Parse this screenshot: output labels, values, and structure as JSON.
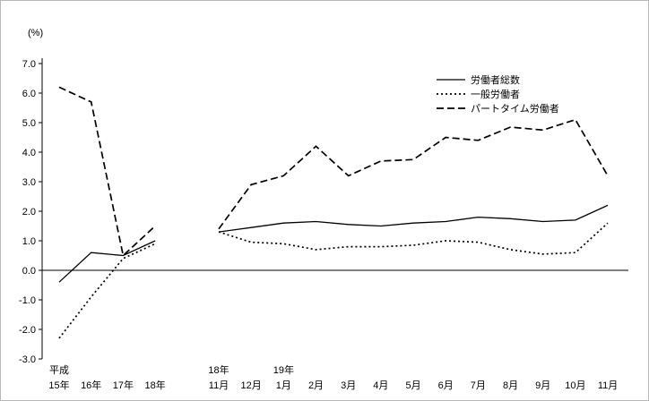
{
  "chart_data": {
    "type": "line",
    "title": "",
    "unit_label": "(%)",
    "ylabel": "(%)",
    "xlabel": "",
    "ylim": [
      -3.0,
      7.0
    ],
    "grid": false,
    "legend_position": "upper-center-right",
    "line_color": "#000000",
    "yticks": [
      "7.0",
      "6.0",
      "5.0",
      "4.0",
      "3.0",
      "2.0",
      "1.0",
      "0.0",
      "-1.0",
      "-2.0",
      "-3.0"
    ],
    "x_axis": {
      "annual": {
        "era_label": "平成",
        "labels": [
          "15年",
          "16年",
          "17年",
          "18年"
        ]
      },
      "monthly": {
        "year_labels": [
          {
            "index": 0,
            "label": "18年"
          },
          {
            "index": 2,
            "label": "19年"
          }
        ],
        "labels": [
          "11月",
          "12月",
          "1月",
          "2月",
          "3月",
          "4月",
          "5月",
          "6月",
          "7月",
          "8月",
          "9月",
          "10月",
          "11月"
        ]
      }
    },
    "legend": [
      {
        "label": "労働者総数",
        "style": "solid"
      },
      {
        "label": "一般労働者",
        "style": "dotted"
      },
      {
        "label": "パートタイム労働者",
        "style": "dashed"
      }
    ],
    "series": [
      {
        "name": "労働者総数",
        "style": "solid",
        "annual": [
          -0.4,
          0.6,
          0.5,
          1.0
        ],
        "monthly": [
          1.3,
          1.45,
          1.6,
          1.65,
          1.55,
          1.5,
          1.6,
          1.65,
          1.8,
          1.75,
          1.65,
          1.7,
          2.2
        ]
      },
      {
        "name": "一般労働者",
        "style": "dotted",
        "annual": [
          -2.3,
          -0.9,
          0.4,
          0.9
        ],
        "monthly": [
          1.3,
          0.95,
          0.9,
          0.7,
          0.8,
          0.8,
          0.85,
          1.0,
          0.95,
          0.7,
          0.55,
          0.6,
          1.6
        ]
      },
      {
        "name": "パートタイム労働者",
        "style": "dashed",
        "annual": [
          6.2,
          5.7,
          0.5,
          1.5
        ],
        "monthly": [
          1.4,
          2.9,
          3.2,
          4.2,
          3.2,
          3.7,
          3.75,
          4.5,
          4.4,
          4.85,
          4.75,
          5.1,
          3.2
        ]
      }
    ]
  }
}
